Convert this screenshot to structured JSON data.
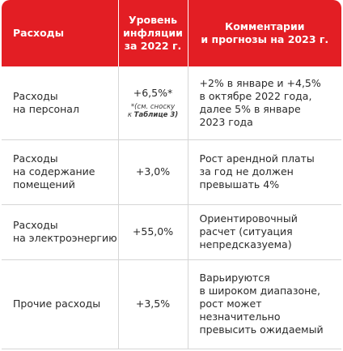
{
  "header": {
    "col1": "Расходы",
    "col2": [
      "Уровень",
      "инфляции",
      "за 2022 г."
    ],
    "col3": [
      "Комментарии",
      "и прогнозы на 2023 г."
    ]
  },
  "rows": [
    {
      "label": [
        "Расходы",
        "на персонал"
      ],
      "value": "+6,5%*",
      "note_text": "*(см. сноску",
      "note_prefix": "к ",
      "note_bold": "Таблице 3)",
      "comment": [
        "+2% в январе и +4,5%",
        "в октябре 2022 года,",
        "далее 5% в январе",
        "2023 года"
      ]
    },
    {
      "label": [
        "Расходы",
        "на содержание",
        "помещений"
      ],
      "value": "+3,0%",
      "comment": [
        "Рост арендной платы",
        "за год не должен",
        "превышать 4%"
      ]
    },
    {
      "label": [
        "Расходы",
        "на электроэнергию"
      ],
      "value": "+55,0%",
      "comment": [
        "Ориентировочный",
        "расчет (ситуация",
        "непредсказуема)"
      ]
    },
    {
      "label": [
        "Прочие расходы"
      ],
      "value": "+3,5%",
      "comment": [
        "Варьируются",
        "в широком диапазоне,",
        "рост может",
        "незначительно",
        "превысить ожидаемый"
      ]
    }
  ],
  "colors": {
    "header_bg": "#e31e24",
    "header_text": "#ffffff",
    "divider": "#d6d6d6"
  }
}
